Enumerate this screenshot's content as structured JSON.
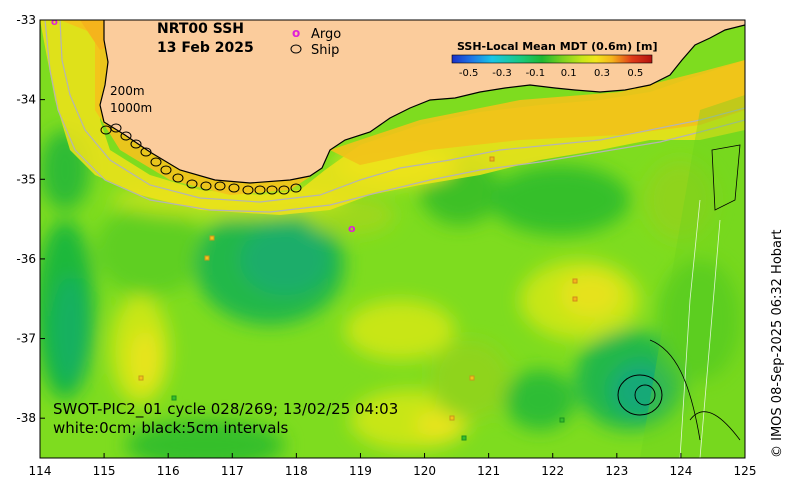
{
  "header": {
    "product": "NRT00 SSH",
    "date": "13 Feb 2025"
  },
  "legend": {
    "argo_symbol": "o",
    "argo_label": "Argo",
    "ship_label": "Ship"
  },
  "isobaths": {
    "shallow": "200m",
    "deep": "1000m"
  },
  "colorbar": {
    "title": "SSH-Local Mean MDT (0.6m) [m]",
    "ticks": [
      "-0.5",
      "-0.3",
      "-0.1",
      "0.1",
      "0.3",
      "0.5"
    ],
    "colors": [
      "#1a2fc8",
      "#1f78e6",
      "#19c6e6",
      "#19c97b",
      "#1fb832",
      "#7ad11f",
      "#c8e619",
      "#f2e61a",
      "#f5b41c",
      "#f27c1c",
      "#e03a19",
      "#b3120f"
    ]
  },
  "swath_note": {
    "line1": "SWOT-PIC2_01 cycle 028/269; 13/02/25 04:03",
    "line2": "white:0cm; black:5cm intervals"
  },
  "axes": {
    "x_ticks": [
      "114",
      "115",
      "116",
      "117",
      "118",
      "119",
      "120",
      "121",
      "122",
      "123",
      "124",
      "125"
    ],
    "y_ticks": [
      "-33",
      "-34",
      "-35",
      "-36",
      "-37",
      "-38"
    ],
    "lon_range": [
      114,
      125
    ],
    "lat_range": [
      -33,
      -38.5
    ]
  },
  "credit": "© IMOS 08-Sep-2025 06:32 Hobart",
  "colors": {
    "land": "#fbcc9c",
    "ocean_base": "#7edc1f",
    "argo": "#e020d8",
    "ship_track": "#000000"
  }
}
